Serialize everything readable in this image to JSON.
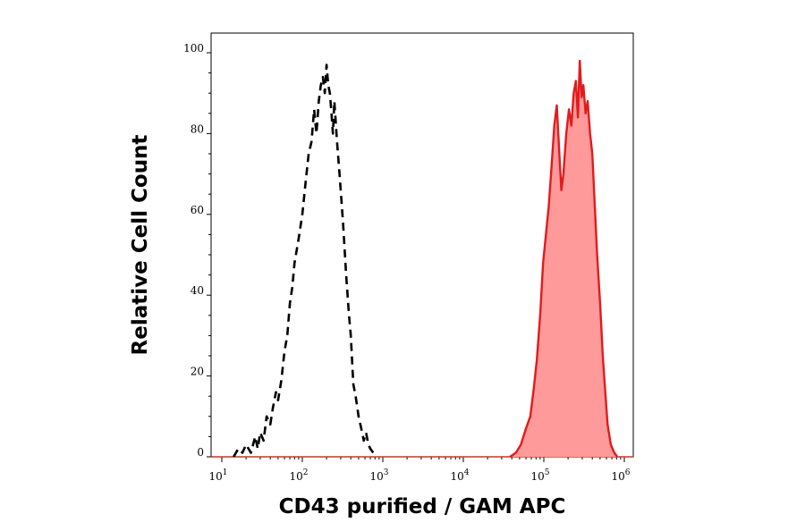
{
  "chart_data": {
    "type": "area",
    "xlabel": "CD43 purified / GAM APC",
    "ylabel": "Relative Cell Count",
    "x_scale": "log",
    "xlim": [
      10,
      1000000
    ],
    "ylim": [
      0,
      100
    ],
    "x_ticks": [
      {
        "value": 10,
        "base": "10",
        "exp": "1"
      },
      {
        "value": 100,
        "base": "10",
        "exp": "2"
      },
      {
        "value": 1000,
        "base": "10",
        "exp": "3"
      },
      {
        "value": 10000,
        "base": "10",
        "exp": "4"
      },
      {
        "value": 100000,
        "base": "10",
        "exp": "5"
      },
      {
        "value": 1000000,
        "base": "10",
        "exp": "6"
      }
    ],
    "y_ticks": [
      "0",
      "20",
      "40",
      "60",
      "80",
      "100"
    ],
    "grid": false,
    "legend": "none",
    "series": [
      {
        "style": "dashed",
        "color": "#000000",
        "fill": "none",
        "points": [
          [
            14,
            0
          ],
          [
            16,
            2
          ],
          [
            18,
            1
          ],
          [
            20,
            3
          ],
          [
            23,
            1
          ],
          [
            26,
            5
          ],
          [
            28,
            2
          ],
          [
            30,
            6
          ],
          [
            33,
            4
          ],
          [
            36,
            10
          ],
          [
            40,
            8
          ],
          [
            43,
            12
          ],
          [
            47,
            16
          ],
          [
            50,
            14
          ],
          [
            55,
            19
          ],
          [
            60,
            26
          ],
          [
            65,
            30
          ],
          [
            70,
            38
          ],
          [
            75,
            42
          ],
          [
            80,
            48
          ],
          [
            90,
            54
          ],
          [
            100,
            60
          ],
          [
            110,
            68
          ],
          [
            120,
            75
          ],
          [
            130,
            78
          ],
          [
            140,
            86
          ],
          [
            150,
            80
          ],
          [
            160,
            88
          ],
          [
            170,
            92
          ],
          [
            180,
            94
          ],
          [
            190,
            90
          ],
          [
            200,
            97
          ],
          [
            210,
            92
          ],
          [
            220,
            90
          ],
          [
            230,
            85
          ],
          [
            240,
            80
          ],
          [
            250,
            88
          ],
          [
            270,
            78
          ],
          [
            290,
            70
          ],
          [
            320,
            58
          ],
          [
            350,
            45
          ],
          [
            380,
            35
          ],
          [
            400,
            30
          ],
          [
            430,
            18
          ],
          [
            460,
            15
          ],
          [
            500,
            10
          ],
          [
            540,
            7
          ],
          [
            580,
            4
          ],
          [
            620,
            6
          ],
          [
            660,
            3
          ],
          [
            700,
            2
          ],
          [
            760,
            1
          ],
          [
            800,
            0
          ]
        ]
      },
      {
        "style": "solid",
        "color": "#e31a1c",
        "fill": "#ff9a9a",
        "points": [
          [
            38000,
            0
          ],
          [
            45000,
            1
          ],
          [
            52000,
            3
          ],
          [
            60000,
            7
          ],
          [
            68000,
            10
          ],
          [
            75000,
            17
          ],
          [
            82000,
            24
          ],
          [
            90000,
            35
          ],
          [
            98000,
            48
          ],
          [
            105000,
            54
          ],
          [
            115000,
            62
          ],
          [
            125000,
            72
          ],
          [
            135000,
            82
          ],
          [
            145000,
            87
          ],
          [
            155000,
            76
          ],
          [
            165000,
            66
          ],
          [
            175000,
            70
          ],
          [
            190000,
            80
          ],
          [
            205000,
            86
          ],
          [
            220000,
            82
          ],
          [
            235000,
            90
          ],
          [
            250000,
            93
          ],
          [
            265000,
            84
          ],
          [
            280000,
            98
          ],
          [
            295000,
            89
          ],
          [
            310000,
            92
          ],
          [
            330000,
            85
          ],
          [
            350000,
            88
          ],
          [
            375000,
            80
          ],
          [
            400000,
            75
          ],
          [
            430000,
            62
          ],
          [
            460000,
            50
          ],
          [
            500000,
            38
          ],
          [
            540000,
            25
          ],
          [
            580000,
            16
          ],
          [
            620000,
            8
          ],
          [
            680000,
            3
          ],
          [
            750000,
            1
          ],
          [
            820000,
            0
          ]
        ]
      }
    ]
  }
}
